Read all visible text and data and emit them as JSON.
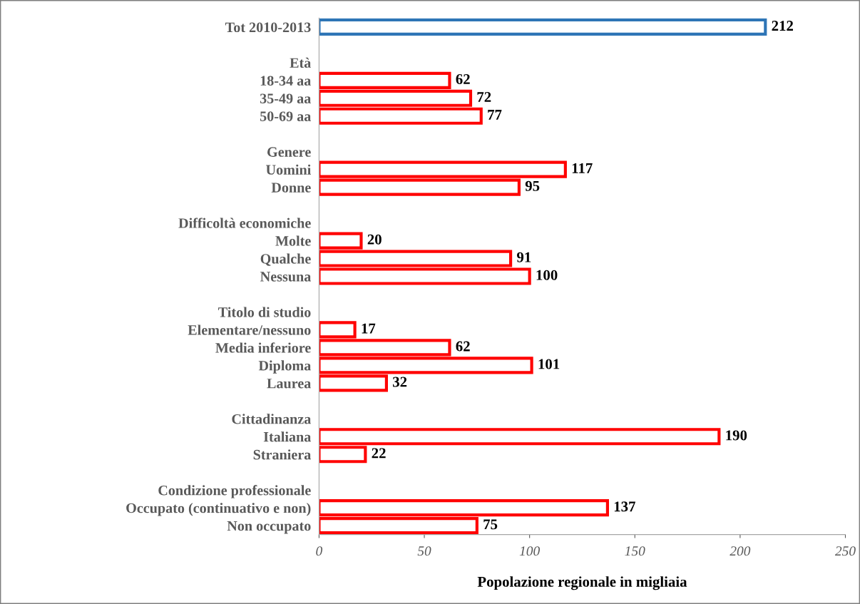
{
  "chart_data": {
    "type": "bar",
    "orientation": "horizontal",
    "xlabel": "Popolazione regionale in migliaia",
    "categories": [
      "Tot 2010-2013",
      null,
      "Età",
      "18-34 aa",
      "35-49 aa",
      "50-69 aa",
      null,
      "Genere",
      "Uomini",
      "Donne",
      null,
      "Difficoltà economiche",
      "Molte",
      "Qualche",
      "Nessuna",
      null,
      "Titolo di studio",
      "Elementare/nessuno",
      "Media inferiore",
      "Diploma",
      "Laurea",
      null,
      "Cittadinanza",
      "Italiana",
      "Straniera",
      null,
      "Condizione professionale",
      "Occupato (continuativo e non)",
      "Non occupato"
    ],
    "values": [
      212,
      null,
      null,
      62,
      72,
      77,
      null,
      null,
      117,
      95,
      null,
      null,
      20,
      91,
      100,
      null,
      null,
      17,
      62,
      101,
      32,
      null,
      null,
      190,
      22,
      null,
      null,
      137,
      75
    ],
    "colors": [
      "#2e75b6",
      null,
      null,
      "#ff0000",
      "#ff0000",
      "#ff0000",
      null,
      null,
      "#ff0000",
      "#ff0000",
      null,
      null,
      "#ff0000",
      "#ff0000",
      "#ff0000",
      null,
      null,
      "#ff0000",
      "#ff0000",
      "#ff0000",
      "#ff0000",
      null,
      null,
      "#ff0000",
      "#ff0000",
      null,
      null,
      "#ff0000",
      "#ff0000"
    ],
    "xlim": [
      0,
      250
    ],
    "xticks": [
      0,
      50,
      100,
      150,
      200,
      250
    ],
    "data_labels": true
  }
}
